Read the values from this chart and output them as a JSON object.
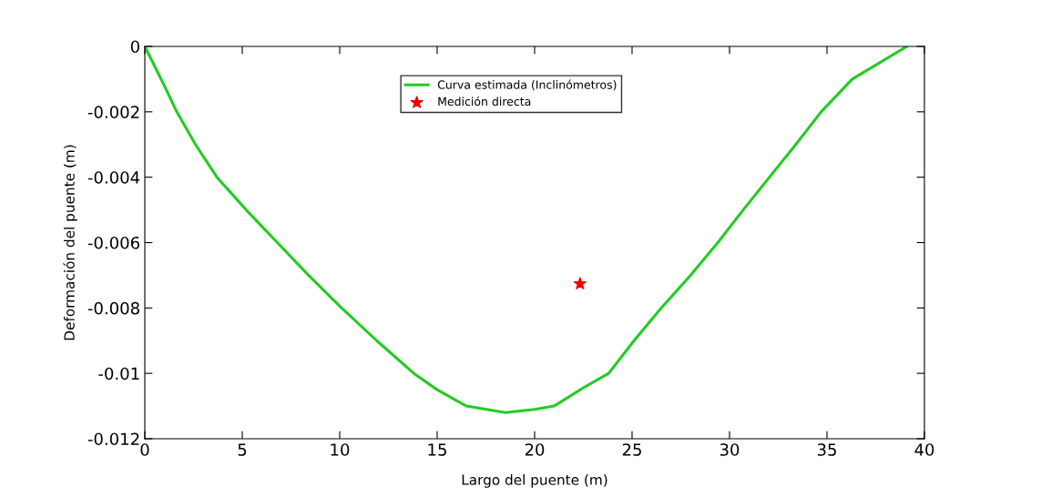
{
  "chart_data": {
    "type": "line",
    "xlabel": "Largo del puente (m)",
    "ylabel": "Deformación del puente (m)",
    "xlim": [
      0,
      40
    ],
    "xticks": [
      0,
      5,
      10,
      15,
      20,
      25,
      30,
      35,
      40
    ],
    "ylim": [
      -0.012,
      0
    ],
    "yticks": [
      -0.012,
      -0.01,
      -0.008,
      -0.006,
      -0.004,
      -0.002,
      0
    ],
    "grid": false,
    "legend": "top",
    "series": [
      {
        "name": "Curva estimada (Inclinómetros)",
        "color": "#22cc22",
        "marker": "none",
        "line_style": "solid",
        "x": [
          0,
          0.5,
          1,
          1.64,
          2.6,
          3.7,
          5.2,
          6.8,
          8.4,
          10.1,
          11.9,
          13.8,
          15,
          16.5,
          18.5,
          20,
          21,
          22.5,
          23.8,
          25.1,
          26.5,
          28,
          29.4,
          30.7,
          32.05,
          33.4,
          34.7,
          36.3,
          39.1
        ],
        "values": [
          0,
          -0.0006,
          -0.0012,
          -0.002,
          -0.003,
          -0.004,
          -0.005,
          -0.006,
          -0.007,
          -0.008,
          -0.009,
          -0.01,
          -0.0105,
          -0.011,
          -0.0112,
          -0.0111,
          -0.011,
          -0.01044,
          -0.01,
          -0.009,
          -0.008,
          -0.007,
          -0.006,
          -0.005,
          -0.004,
          -0.003,
          -0.002,
          -0.001,
          0
        ]
      },
      {
        "name": "Medición directa",
        "type": "scatter",
        "color": "#ee0000",
        "marker": "star",
        "x": [
          22.33
        ],
        "values": [
          -0.00726
        ]
      }
    ]
  }
}
